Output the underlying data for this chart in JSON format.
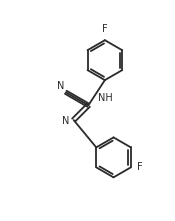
{
  "bg_color": "#ffffff",
  "line_color": "#2a2a2a",
  "text_color": "#2a2a2a",
  "line_width": 1.3,
  "font_size": 7.0,
  "figsize": [
    1.75,
    2.21
  ],
  "dpi": 100,
  "xlim": [
    0,
    10
  ],
  "ylim": [
    0,
    12.6
  ]
}
